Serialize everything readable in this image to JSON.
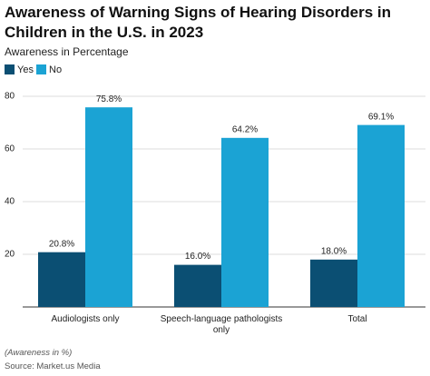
{
  "chart_data": {
    "type": "bar",
    "title": "Awareness of Warning Signs of Hearing Disorders in Children in the U.S. in 2023",
    "subtitle": "Awareness in Percentage",
    "categories": [
      "Audiologists only",
      "Speech-language pathologists only",
      "Total"
    ],
    "series": [
      {
        "name": "Yes",
        "color": "#0b4f73",
        "values": [
          20.8,
          16.0,
          18.0
        ],
        "value_labels": [
          "20.8%",
          "16.0%",
          "18.0%"
        ]
      },
      {
        "name": "No",
        "color": "#1ba3d4",
        "values": [
          75.8,
          64.2,
          69.1
        ],
        "value_labels": [
          "75.8%",
          "64.2%",
          "69.1%"
        ]
      }
    ],
    "ylim": [
      0,
      80
    ],
    "yticks": [
      20,
      40,
      60,
      80
    ],
    "grid": true,
    "footnote": "(Awareness in %)",
    "source": "Source: Market.us Media"
  }
}
